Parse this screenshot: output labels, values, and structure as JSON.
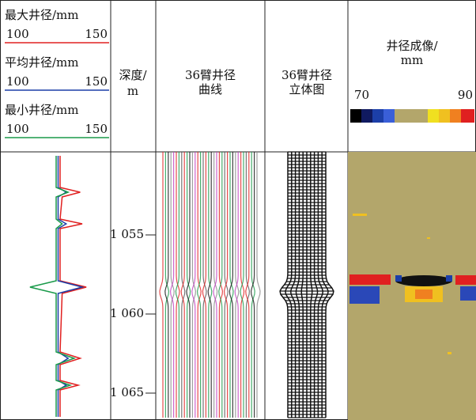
{
  "chart_data": {
    "type": "line",
    "depth": [
      1050,
      1052,
      1052.3,
      1052.6,
      1054,
      1054.3,
      1054.6,
      1057.9,
      1058.3,
      1058.7,
      1062.4,
      1062.8,
      1063.2,
      1064.2,
      1064.5,
      1064.8,
      1066.5
    ],
    "series": [
      {
        "name": "最大井径/mm",
        "color": "#e02020",
        "values": [
          126,
          126,
          136,
          127,
          126,
          137,
          126,
          126,
          139,
          127,
          126,
          136,
          126,
          126,
          135,
          126,
          126
        ]
      },
      {
        "name": "平均井径/mm",
        "color": "#1c3fa8",
        "values": [
          125,
          125,
          129,
          125,
          125,
          129,
          125,
          125,
          137,
          125,
          125,
          130,
          125,
          125,
          129,
          125,
          125
        ]
      },
      {
        "name": "最小井径/mm",
        "color": "#1a9a4a",
        "values": [
          124,
          124,
          130,
          124,
          124,
          127,
          124,
          124,
          111,
          124,
          124,
          133,
          124,
          124,
          131,
          124,
          124
        ]
      }
    ],
    "xlim": [
      100,
      150
    ],
    "ylim": [
      1049.75,
      1066.7
    ],
    "yticks": [
      {
        "value": 1055,
        "label": "1 055"
      },
      {
        "value": 1060,
        "label": "1 060"
      },
      {
        "value": 1065,
        "label": "1 065"
      }
    ]
  },
  "headers": {
    "depth": [
      "深度/",
      "m"
    ],
    "curves": [
      "36臂井径",
      "曲线"
    ],
    "solid": [
      "36臂井径",
      "立体图"
    ],
    "image": [
      "井径成像/",
      "mm"
    ]
  },
  "image_scale": {
    "min": 70,
    "max": 90
  }
}
